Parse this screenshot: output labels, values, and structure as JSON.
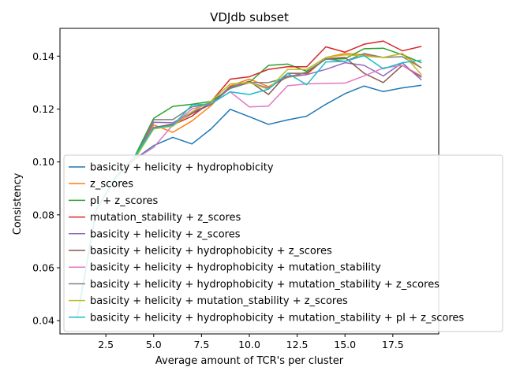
{
  "chart_data": {
    "type": "line",
    "title": "VDJdb subset",
    "xlabel": "Average amount of TCR's per cluster",
    "ylabel": "Consistency",
    "xlim": [
      0.1,
      19.9
    ],
    "ylim": [
      0.035,
      0.1505
    ],
    "xticks": [
      2.5,
      5.0,
      7.5,
      10.0,
      12.5,
      15.0,
      17.5
    ],
    "xtick_labels": [
      "2.5",
      "5.0",
      "7.5",
      "10.0",
      "12.5",
      "15.0",
      "17.5"
    ],
    "yticks": [
      0.04,
      0.06,
      0.08,
      0.1,
      0.12,
      0.14
    ],
    "ytick_labels": [
      "0.04",
      "0.06",
      "0.08",
      "0.10",
      "0.12",
      "0.14"
    ],
    "grid": false,
    "legend_position": "lower-left",
    "x": [
      1,
      2,
      3,
      4,
      5,
      6,
      7,
      8,
      9,
      10,
      11,
      12,
      13,
      14,
      15,
      16,
      17,
      18,
      19
    ],
    "series": [
      {
        "name": "basicity + helicity + hydrophobicity",
        "color": "#1f77b4",
        "values": [
          0.041,
          0.082,
          0.094,
          0.101,
          0.1062,
          0.1093,
          0.1068,
          0.1125,
          0.1199,
          0.1171,
          0.1142,
          0.1159,
          0.1173,
          0.1218,
          0.1258,
          0.1287,
          0.1266,
          0.128,
          0.129
        ]
      },
      {
        "name": "z_scores",
        "color": "#ff7f0e",
        "values": [
          0.041,
          0.082,
          0.094,
          0.101,
          0.114,
          0.1112,
          0.1155,
          0.1213,
          0.1288,
          0.1313,
          0.1285,
          0.132,
          0.133,
          0.1395,
          0.141,
          0.1405,
          0.1395,
          0.141,
          0.1355
        ]
      },
      {
        "name": "pI + z_scores",
        "color": "#2ca02c",
        "values": [
          0.041,
          0.082,
          0.094,
          0.102,
          0.1165,
          0.121,
          0.1218,
          0.1229,
          0.1278,
          0.13,
          0.1365,
          0.137,
          0.1343,
          0.1388,
          0.139,
          0.1428,
          0.143,
          0.1405,
          0.1375
        ]
      },
      {
        "name": "mutation_stability + z_scores",
        "color": "#d62728",
        "values": [
          0.041,
          0.082,
          0.094,
          0.101,
          0.113,
          0.114,
          0.1173,
          0.1228,
          0.1313,
          0.1322,
          0.135,
          0.136,
          0.136,
          0.1435,
          0.1415,
          0.1445,
          0.1457,
          0.142,
          0.1437
        ]
      },
      {
        "name": "basicity + helicity + z_scores",
        "color": "#9467bd",
        "values": [
          0.041,
          0.082,
          0.094,
          0.101,
          0.115,
          0.1148,
          0.1188,
          0.1218,
          0.128,
          0.13,
          0.128,
          0.1325,
          0.133,
          0.135,
          0.1375,
          0.1365,
          0.1325,
          0.1375,
          0.131
        ]
      },
      {
        "name": "basicity + helicity + hydrophobicity + z_scores",
        "color": "#8c564b",
        "values": [
          0.041,
          0.082,
          0.094,
          0.101,
          0.113,
          0.1143,
          0.1183,
          0.1218,
          0.1283,
          0.1305,
          0.1255,
          0.1335,
          0.1335,
          0.139,
          0.1395,
          0.1335,
          0.13,
          0.1365,
          0.132
        ]
      },
      {
        "name": "basicity + helicity + hydrophobicity + mutation_stability",
        "color": "#e377c2",
        "values": [
          0.041,
          0.082,
          0.094,
          0.101,
          0.1055,
          0.114,
          0.12,
          0.122,
          0.1265,
          0.1208,
          0.1211,
          0.1288,
          0.1295,
          0.1297,
          0.1298,
          0.1325,
          0.1355,
          0.1365,
          0.1325
        ]
      },
      {
        "name": "basicity + helicity + hydrophobicity + mutation_stability + z_scores",
        "color": "#7f7f7f",
        "values": [
          0.041,
          0.082,
          0.094,
          0.101,
          0.116,
          0.116,
          0.1208,
          0.122,
          0.1285,
          0.13,
          0.13,
          0.132,
          0.134,
          0.139,
          0.138,
          0.141,
          0.1395,
          0.1398,
          0.1355
        ]
      },
      {
        "name": "basicity + helicity + mutation_stability + z_scores",
        "color": "#bcbd22",
        "values": [
          0.041,
          0.082,
          0.094,
          0.101,
          0.1125,
          0.1135,
          0.119,
          0.123,
          0.1295,
          0.13,
          0.1275,
          0.135,
          0.135,
          0.1395,
          0.1405,
          0.14,
          0.1395,
          0.141,
          0.133
        ]
      },
      {
        "name": "basicity + helicity + hydrophobicity + mutation_stability + pI + z_scores",
        "color": "#17becf",
        "values": [
          0.041,
          0.082,
          0.094,
          0.102,
          0.1128,
          0.1138,
          0.1215,
          0.122,
          0.1265,
          0.1255,
          0.1275,
          0.1335,
          0.1292,
          0.1378,
          0.138,
          0.1402,
          0.1352,
          0.1375,
          0.1385
        ]
      }
    ]
  }
}
